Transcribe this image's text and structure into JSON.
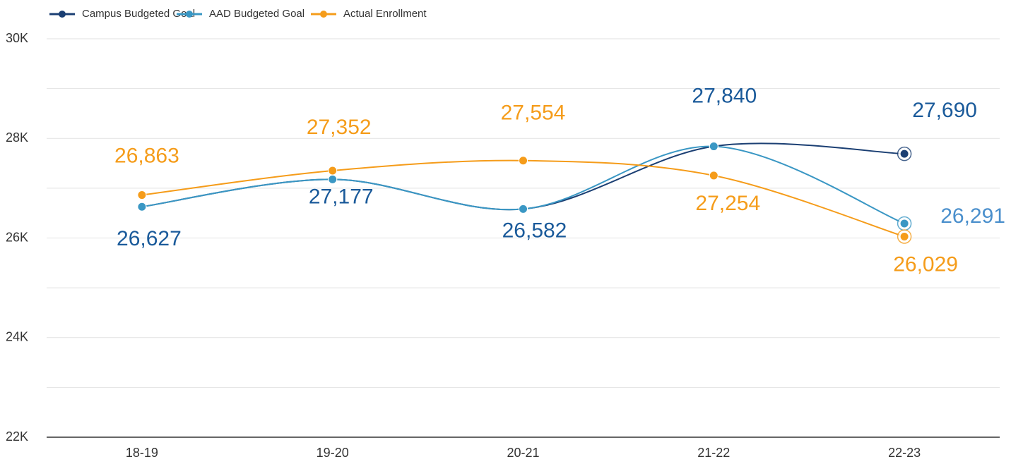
{
  "chart_data": {
    "type": "line",
    "categories": [
      "18-19",
      "19-20",
      "20-21",
      "21-22",
      "22-23"
    ],
    "series": [
      {
        "name": "Campus Budgeted Goal",
        "color": "#1b3f73",
        "label_color": "#1a5a9a",
        "values": [
          26627,
          27177,
          26582,
          27840,
          27690
        ],
        "value_labels": [
          "26,627",
          "27,177",
          "26,582",
          "27,840",
          "27,690"
        ]
      },
      {
        "name": "AAD Budgeted Goal",
        "color": "#3a97c4",
        "label_color": "#4a8fcc",
        "values": [
          26627,
          27177,
          26582,
          27840,
          26291
        ],
        "value_labels": [
          null,
          null,
          null,
          null,
          "26,291"
        ]
      },
      {
        "name": "Actual Enrollment",
        "color": "#f59c1a",
        "label_color": "#f59c1a",
        "values": [
          26863,
          27352,
          27554,
          27254,
          26029
        ],
        "value_labels": [
          "26,863",
          "27,352",
          "27,554",
          "27,254",
          "26,029"
        ]
      }
    ],
    "ylim": [
      22000,
      30000
    ],
    "yticks": [
      {
        "value": 22000,
        "label": "22K"
      },
      {
        "value": 24000,
        "label": "24K"
      },
      {
        "value": 26000,
        "label": "26K"
      },
      {
        "value": 28000,
        "label": "28K"
      },
      {
        "value": 30000,
        "label": "30K"
      }
    ],
    "minor_grid": [
      23000,
      25000,
      27000,
      29000
    ],
    "grid": true,
    "smooth": true,
    "legend": "top-left"
  }
}
